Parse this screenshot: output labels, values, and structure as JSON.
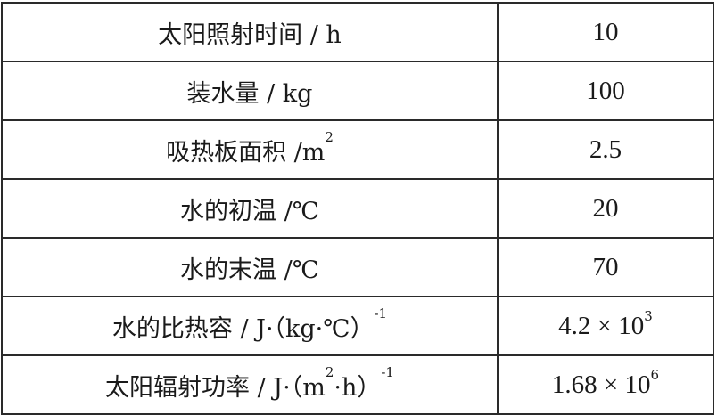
{
  "table": {
    "rows": [
      {
        "label": "太阳照射时间 / h",
        "value": "10"
      },
      {
        "label": "装水量 / kg",
        "value": "100"
      },
      {
        "label": "吸热板面积 /m",
        "label_sup": "2",
        "value": "2.5"
      },
      {
        "label": "水的初温 /℃",
        "value": "20"
      },
      {
        "label": "水的末温 /℃",
        "value": "70"
      },
      {
        "label": "水的比热容 / J·（kg·℃）",
        "label_sup": "-1",
        "value": "4.2 × 10",
        "value_sup": "3"
      },
      {
        "label": "太阳辐射功率 / J·（m",
        "label_sup": "2",
        "label_after": "·h）",
        "label_sup2": "-1",
        "value": "1.68 × 10",
        "value_sup": "6"
      }
    ]
  }
}
